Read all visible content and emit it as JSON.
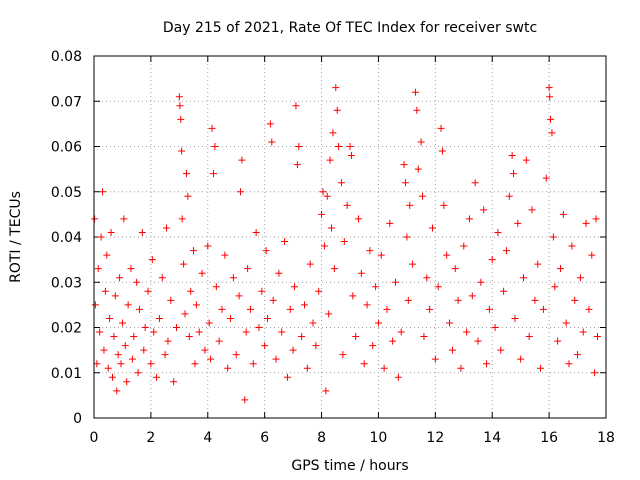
{
  "chart_data": {
    "type": "scatter",
    "title": "Day 215 of 2021, Rate Of TEC Index for receiver swtc",
    "xlabel": "GPS time / hours",
    "ylabel": "ROTI / TECUs",
    "xlim": [
      0,
      18
    ],
    "ylim": [
      0,
      0.08
    ],
    "x_ticks": [
      0,
      2,
      4,
      6,
      8,
      10,
      12,
      14,
      16,
      18
    ],
    "x_tick_labels": [
      "0",
      "2",
      "4",
      "6",
      "8",
      "10",
      "12",
      "14",
      "16",
      "18"
    ],
    "y_ticks": [
      0,
      0.01,
      0.02,
      0.03,
      0.04,
      0.05,
      0.06,
      0.07,
      0.08
    ],
    "y_tick_labels": [
      "0",
      "0.01",
      "0.02",
      "0.03",
      "0.04",
      "0.05",
      "0.06",
      "0.07",
      "0.08"
    ],
    "grid": true,
    "marker": "+",
    "color": "#ff0000",
    "series": [
      {
        "name": "ROTI",
        "points": [
          [
            0.02,
            0.044
          ],
          [
            0.05,
            0.025
          ],
          [
            0.1,
            0.012
          ],
          [
            0.15,
            0.033
          ],
          [
            0.2,
            0.019
          ],
          [
            0.25,
            0.04
          ],
          [
            0.3,
            0.05
          ],
          [
            0.35,
            0.015
          ],
          [
            0.4,
            0.028
          ],
          [
            0.45,
            0.036
          ],
          [
            0.5,
            0.011
          ],
          [
            0.55,
            0.022
          ],
          [
            0.6,
            0.041
          ],
          [
            0.65,
            0.009
          ],
          [
            0.7,
            0.018
          ],
          [
            0.75,
            0.027
          ],
          [
            0.8,
            0.006
          ],
          [
            0.85,
            0.014
          ],
          [
            0.9,
            0.031
          ],
          [
            0.95,
            0.012
          ],
          [
            1.0,
            0.021
          ],
          [
            1.05,
            0.044
          ],
          [
            1.1,
            0.016
          ],
          [
            1.15,
            0.008
          ],
          [
            1.2,
            0.025
          ],
          [
            1.3,
            0.033
          ],
          [
            1.35,
            0.013
          ],
          [
            1.4,
            0.018
          ],
          [
            1.5,
            0.03
          ],
          [
            1.55,
            0.01
          ],
          [
            1.6,
            0.024
          ],
          [
            1.7,
            0.041
          ],
          [
            1.75,
            0.015
          ],
          [
            1.8,
            0.02
          ],
          [
            1.9,
            0.028
          ],
          [
            2.0,
            0.012
          ],
          [
            2.05,
            0.035
          ],
          [
            2.1,
            0.019
          ],
          [
            2.2,
            0.009
          ],
          [
            2.3,
            0.022
          ],
          [
            2.4,
            0.031
          ],
          [
            2.5,
            0.014
          ],
          [
            2.55,
            0.042
          ],
          [
            2.6,
            0.017
          ],
          [
            2.7,
            0.026
          ],
          [
            2.8,
            0.008
          ],
          [
            2.9,
            0.02
          ],
          [
            3.0,
            0.071
          ],
          [
            3.02,
            0.069
          ],
          [
            3.05,
            0.066
          ],
          [
            3.08,
            0.059
          ],
          [
            3.1,
            0.044
          ],
          [
            3.15,
            0.034
          ],
          [
            3.2,
            0.023
          ],
          [
            3.25,
            0.054
          ],
          [
            3.3,
            0.049
          ],
          [
            3.35,
            0.018
          ],
          [
            3.4,
            0.028
          ],
          [
            3.5,
            0.037
          ],
          [
            3.55,
            0.012
          ],
          [
            3.6,
            0.025
          ],
          [
            3.7,
            0.019
          ],
          [
            3.8,
            0.032
          ],
          [
            3.9,
            0.015
          ],
          [
            4.0,
            0.038
          ],
          [
            4.05,
            0.021
          ],
          [
            4.1,
            0.013
          ],
          [
            4.15,
            0.064
          ],
          [
            4.2,
            0.054
          ],
          [
            4.25,
            0.06
          ],
          [
            4.3,
            0.029
          ],
          [
            4.4,
            0.017
          ],
          [
            4.5,
            0.024
          ],
          [
            4.6,
            0.036
          ],
          [
            4.7,
            0.011
          ],
          [
            4.8,
            0.022
          ],
          [
            4.9,
            0.031
          ],
          [
            5.0,
            0.014
          ],
          [
            5.1,
            0.027
          ],
          [
            5.15,
            0.05
          ],
          [
            5.2,
            0.057
          ],
          [
            5.3,
            0.004
          ],
          [
            5.35,
            0.019
          ],
          [
            5.4,
            0.033
          ],
          [
            5.5,
            0.024
          ],
          [
            5.6,
            0.012
          ],
          [
            5.7,
            0.041
          ],
          [
            5.8,
            0.02
          ],
          [
            5.9,
            0.028
          ],
          [
            6.0,
            0.016
          ],
          [
            6.05,
            0.037
          ],
          [
            6.1,
            0.022
          ],
          [
            6.2,
            0.065
          ],
          [
            6.25,
            0.061
          ],
          [
            6.3,
            0.026
          ],
          [
            6.4,
            0.013
          ],
          [
            6.5,
            0.032
          ],
          [
            6.6,
            0.019
          ],
          [
            6.7,
            0.039
          ],
          [
            6.8,
            0.009
          ],
          [
            6.9,
            0.024
          ],
          [
            7.0,
            0.015
          ],
          [
            7.05,
            0.029
          ],
          [
            7.1,
            0.069
          ],
          [
            7.15,
            0.056
          ],
          [
            7.2,
            0.06
          ],
          [
            7.3,
            0.018
          ],
          [
            7.4,
            0.025
          ],
          [
            7.5,
            0.011
          ],
          [
            7.6,
            0.034
          ],
          [
            7.7,
            0.021
          ],
          [
            7.8,
            0.016
          ],
          [
            7.9,
            0.028
          ],
          [
            8.0,
            0.045
          ],
          [
            8.05,
            0.05
          ],
          [
            8.1,
            0.038
          ],
          [
            8.15,
            0.006
          ],
          [
            8.2,
            0.049
          ],
          [
            8.25,
            0.023
          ],
          [
            8.3,
            0.057
          ],
          [
            8.35,
            0.042
          ],
          [
            8.4,
            0.063
          ],
          [
            8.45,
            0.033
          ],
          [
            8.5,
            0.073
          ],
          [
            8.55,
            0.068
          ],
          [
            8.6,
            0.06
          ],
          [
            8.7,
            0.052
          ],
          [
            8.75,
            0.014
          ],
          [
            8.8,
            0.039
          ],
          [
            8.9,
            0.047
          ],
          [
            9.0,
            0.06
          ],
          [
            9.05,
            0.058
          ],
          [
            9.1,
            0.027
          ],
          [
            9.2,
            0.018
          ],
          [
            9.3,
            0.044
          ],
          [
            9.4,
            0.032
          ],
          [
            9.5,
            0.012
          ],
          [
            9.6,
            0.025
          ],
          [
            9.7,
            0.037
          ],
          [
            9.8,
            0.016
          ],
          [
            9.9,
            0.029
          ],
          [
            10.0,
            0.021
          ],
          [
            10.1,
            0.036
          ],
          [
            10.2,
            0.011
          ],
          [
            10.3,
            0.024
          ],
          [
            10.4,
            0.043
          ],
          [
            10.5,
            0.017
          ],
          [
            10.6,
            0.03
          ],
          [
            10.7,
            0.009
          ],
          [
            10.8,
            0.019
          ],
          [
            10.9,
            0.056
          ],
          [
            10.95,
            0.052
          ],
          [
            11.0,
            0.04
          ],
          [
            11.05,
            0.026
          ],
          [
            11.1,
            0.047
          ],
          [
            11.2,
            0.034
          ],
          [
            11.3,
            0.072
          ],
          [
            11.35,
            0.068
          ],
          [
            11.4,
            0.055
          ],
          [
            11.5,
            0.061
          ],
          [
            11.55,
            0.049
          ],
          [
            11.6,
            0.018
          ],
          [
            11.7,
            0.031
          ],
          [
            11.8,
            0.024
          ],
          [
            11.9,
            0.042
          ],
          [
            12.0,
            0.013
          ],
          [
            12.1,
            0.029
          ],
          [
            12.2,
            0.064
          ],
          [
            12.25,
            0.059
          ],
          [
            12.3,
            0.047
          ],
          [
            12.4,
            0.036
          ],
          [
            12.5,
            0.021
          ],
          [
            12.6,
            0.015
          ],
          [
            12.7,
            0.033
          ],
          [
            12.8,
            0.026
          ],
          [
            12.9,
            0.011
          ],
          [
            13.0,
            0.038
          ],
          [
            13.1,
            0.019
          ],
          [
            13.2,
            0.044
          ],
          [
            13.3,
            0.027
          ],
          [
            13.4,
            0.052
          ],
          [
            13.5,
            0.017
          ],
          [
            13.6,
            0.03
          ],
          [
            13.7,
            0.046
          ],
          [
            13.8,
            0.012
          ],
          [
            13.9,
            0.024
          ],
          [
            14.0,
            0.035
          ],
          [
            14.1,
            0.02
          ],
          [
            14.2,
            0.041
          ],
          [
            14.3,
            0.015
          ],
          [
            14.4,
            0.028
          ],
          [
            14.5,
            0.037
          ],
          [
            14.6,
            0.049
          ],
          [
            14.7,
            0.058
          ],
          [
            14.75,
            0.054
          ],
          [
            14.8,
            0.022
          ],
          [
            14.9,
            0.043
          ],
          [
            15.0,
            0.013
          ],
          [
            15.1,
            0.031
          ],
          [
            15.2,
            0.057
          ],
          [
            15.3,
            0.018
          ],
          [
            15.4,
            0.046
          ],
          [
            15.5,
            0.026
          ],
          [
            15.6,
            0.034
          ],
          [
            15.7,
            0.011
          ],
          [
            15.8,
            0.024
          ],
          [
            15.9,
            0.053
          ],
          [
            16.0,
            0.073
          ],
          [
            16.02,
            0.071
          ],
          [
            16.05,
            0.066
          ],
          [
            16.1,
            0.063
          ],
          [
            16.15,
            0.04
          ],
          [
            16.2,
            0.029
          ],
          [
            16.3,
            0.017
          ],
          [
            16.4,
            0.033
          ],
          [
            16.5,
            0.045
          ],
          [
            16.6,
            0.021
          ],
          [
            16.7,
            0.012
          ],
          [
            16.8,
            0.038
          ],
          [
            16.9,
            0.026
          ],
          [
            17.0,
            0.014
          ],
          [
            17.1,
            0.031
          ],
          [
            17.2,
            0.019
          ],
          [
            17.3,
            0.043
          ],
          [
            17.4,
            0.024
          ],
          [
            17.5,
            0.036
          ],
          [
            17.6,
            0.01
          ],
          [
            17.65,
            0.044
          ],
          [
            17.7,
            0.018
          ]
        ]
      }
    ]
  }
}
